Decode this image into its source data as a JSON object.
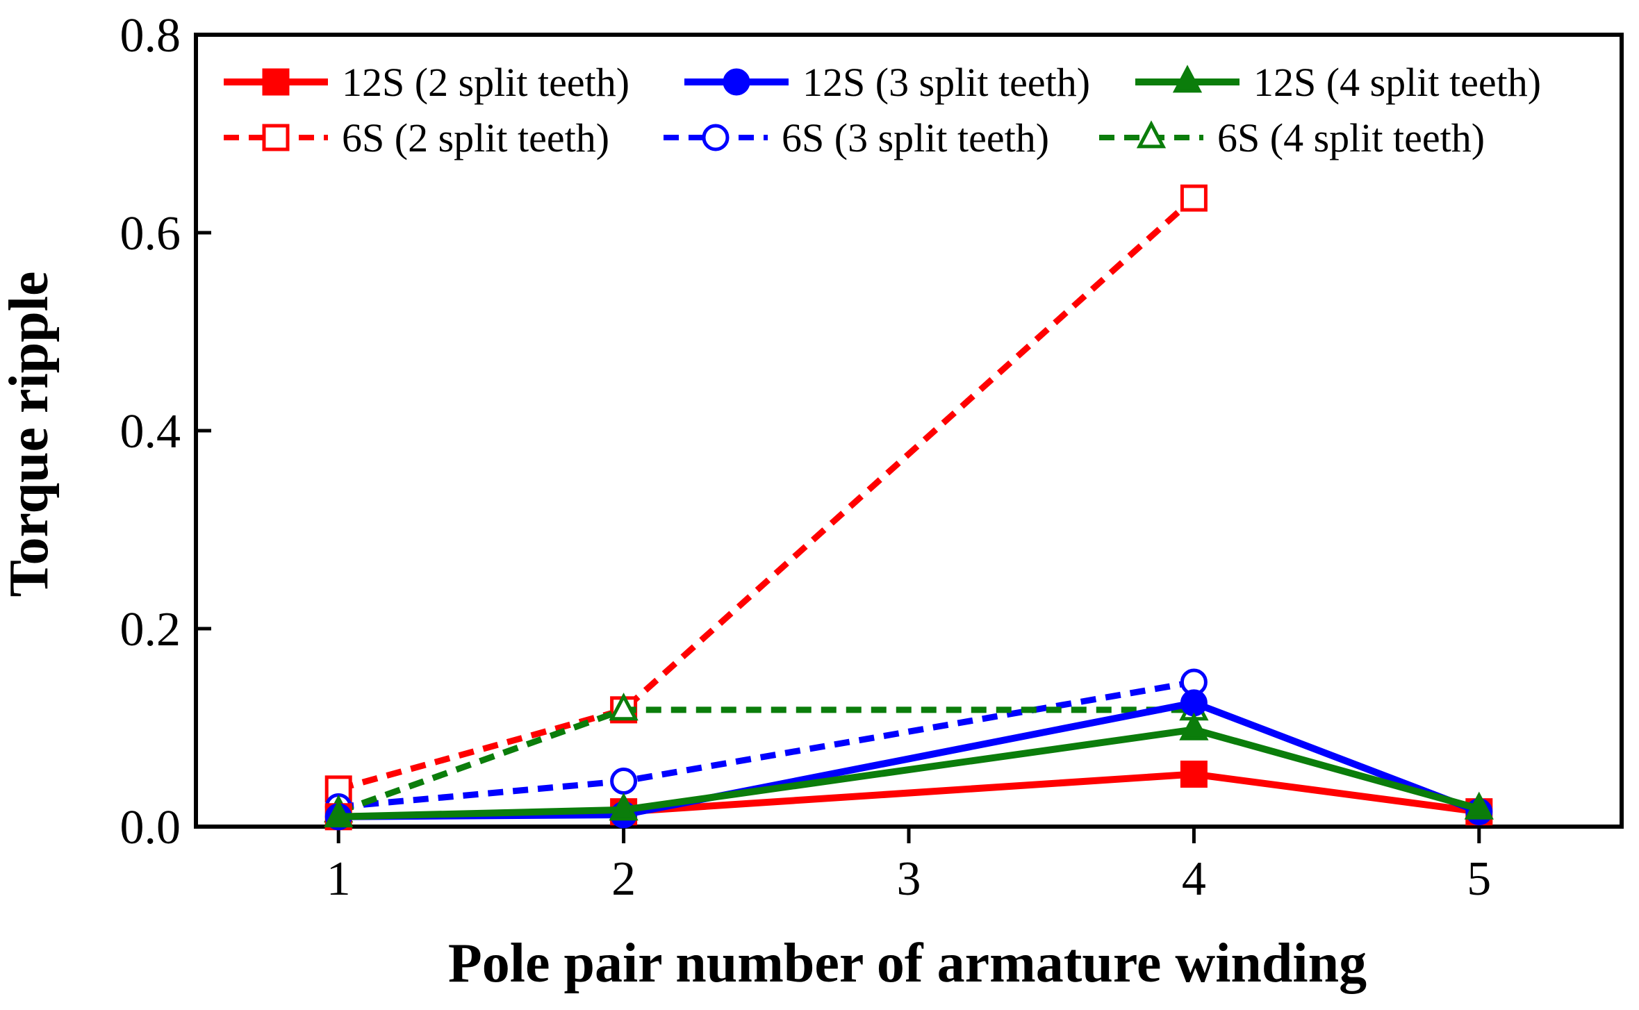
{
  "chart_data": {
    "type": "line",
    "title": "",
    "xlabel": "Pole pair number of armature winding",
    "ylabel": "Torque ripple",
    "xlim": [
      0.5,
      5.5
    ],
    "ylim": [
      0.0,
      0.8
    ],
    "xticks": [
      1,
      2,
      3,
      4,
      5
    ],
    "xtick_labels": [
      "1",
      "2",
      "3",
      "4",
      "5"
    ],
    "yticks": [
      0.0,
      0.2,
      0.4,
      0.6,
      0.8
    ],
    "ytick_labels": [
      "0.0",
      "0.2",
      "0.4",
      "0.6",
      "0.8"
    ],
    "grid": false,
    "legend_position": "top",
    "series": [
      {
        "name": "12S (2 split teeth)",
        "color": "#ff0000",
        "style": "solid",
        "marker": "square",
        "filled": true,
        "points": [
          [
            1,
            0.01
          ],
          [
            2,
            0.015
          ],
          [
            4,
            0.053
          ],
          [
            5,
            0.015
          ]
        ]
      },
      {
        "name": "12S (3 split teeth)",
        "color": "#0000ff",
        "style": "solid",
        "marker": "circle",
        "filled": true,
        "points": [
          [
            1,
            0.01
          ],
          [
            2,
            0.012
          ],
          [
            4,
            0.125
          ],
          [
            5,
            0.015
          ]
        ]
      },
      {
        "name": "12S (4 split teeth)",
        "color": "#0b7d0b",
        "style": "solid",
        "marker": "triangle",
        "filled": true,
        "points": [
          [
            1,
            0.01
          ],
          [
            2,
            0.017
          ],
          [
            4,
            0.098
          ],
          [
            5,
            0.018
          ]
        ]
      },
      {
        "name": "6S (2 split teeth)",
        "color": "#ff0000",
        "style": "dashed",
        "marker": "square",
        "filled": false,
        "points": [
          [
            1,
            0.038
          ],
          [
            2,
            0.118
          ],
          [
            4,
            0.635
          ]
        ]
      },
      {
        "name": "6S (3 split teeth)",
        "color": "#0000ff",
        "style": "dashed",
        "marker": "circle",
        "filled": false,
        "points": [
          [
            1,
            0.02
          ],
          [
            2,
            0.046
          ],
          [
            4,
            0.146
          ]
        ]
      },
      {
        "name": "6S (4 split teeth)",
        "color": "#0b7d0b",
        "style": "dashed",
        "marker": "triangle",
        "filled": false,
        "points": [
          [
            1,
            0.015
          ],
          [
            2,
            0.118
          ],
          [
            4,
            0.118
          ]
        ]
      }
    ]
  }
}
